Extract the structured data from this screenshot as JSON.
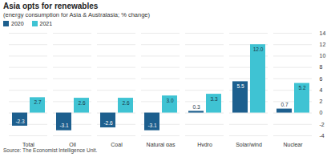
{
  "chart_data": {
    "type": "bar",
    "title": "Asia opts for renewables",
    "subtitle": "(energy consumption for Asia & Australasia; % change)",
    "source": "Source: The Economist Intelligence Unit.",
    "categories": [
      "Total",
      "Oil",
      "Coal",
      "Natural gas",
      "Hydro",
      "Solar/wind",
      "Nuclear"
    ],
    "series": [
      {
        "name": "2020",
        "color": "#1d5f8e",
        "values": [
          -2.3,
          -3.1,
          -2.6,
          -3.1,
          0.3,
          5.5,
          0.7
        ],
        "value_labels": [
          "-2.3",
          "-3.1",
          "-2.6",
          "-3.1",
          "0.3",
          "5.5",
          "0.7"
        ]
      },
      {
        "name": "2021",
        "color": "#3fc3d3",
        "values": [
          2.7,
          2.6,
          2.6,
          3.0,
          3.3,
          12.0,
          5.2
        ],
        "value_labels": [
          "2.7",
          "2.6",
          "2.6",
          "3.0",
          "3.3",
          "12.0",
          "5.2"
        ]
      }
    ],
    "ylim": [
      -4,
      14
    ],
    "yticks": [
      -4,
      -2,
      0,
      2,
      4,
      6,
      8,
      10,
      12,
      14
    ],
    "grid": true,
    "legend": "top-left",
    "data_labels": true
  }
}
